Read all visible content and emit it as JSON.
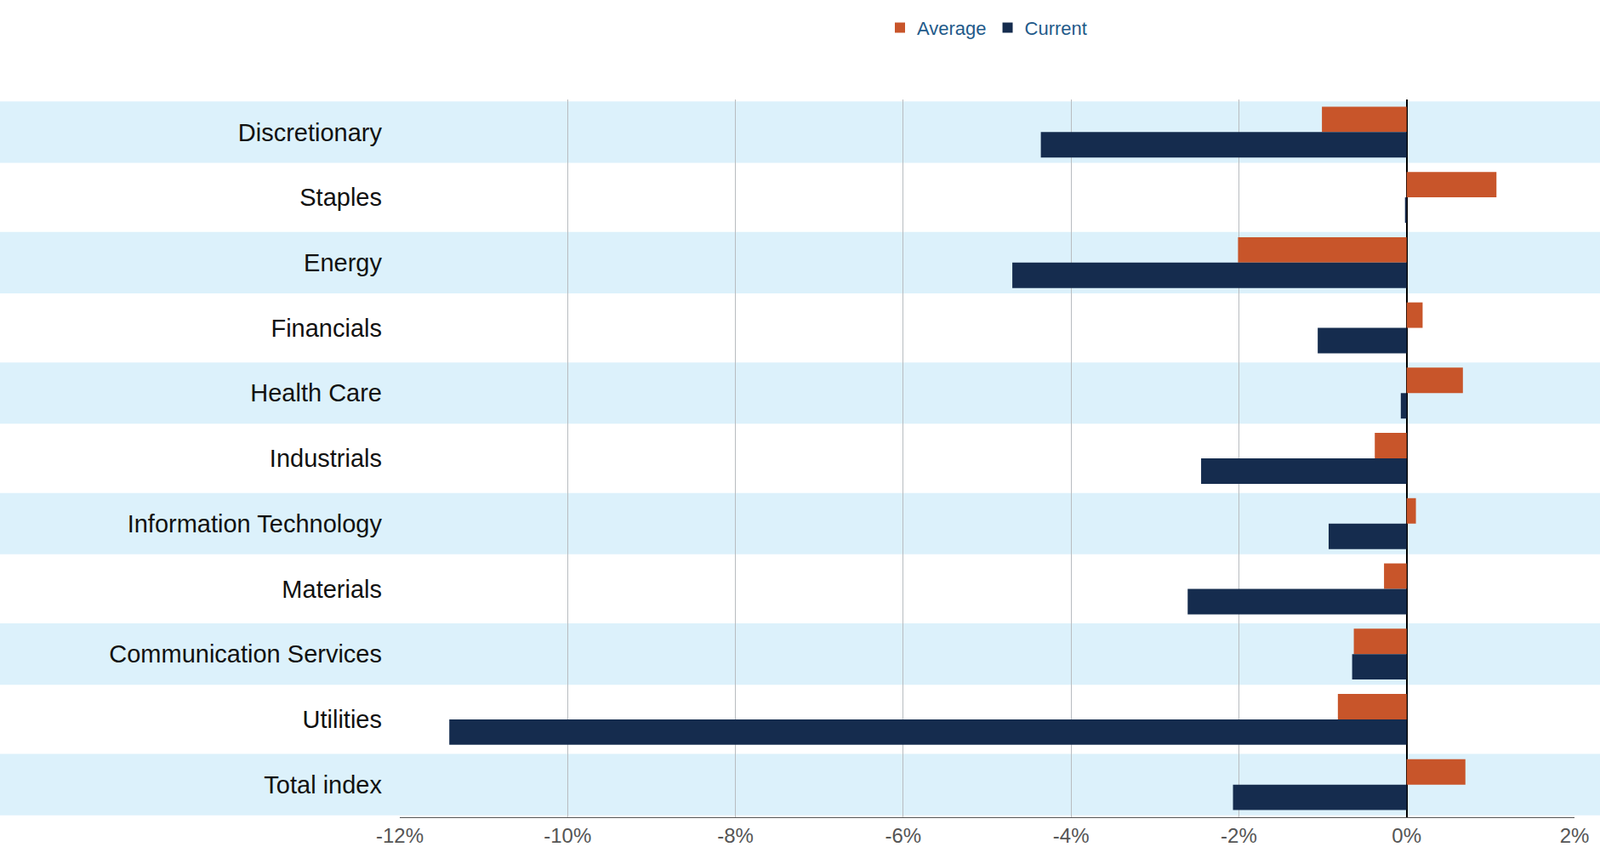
{
  "chart_data": {
    "type": "bar",
    "orientation": "horizontal",
    "categories": [
      "Discretionary",
      "Staples",
      "Energy",
      "Financials",
      "Health Care",
      "Industrials",
      "Information Technology",
      "Materials",
      "Communication Services",
      "Utilities",
      "Total index"
    ],
    "series": [
      {
        "name": "Average",
        "color": "#c8552a",
        "values": [
          -1.01,
          1.07,
          -2.01,
          0.19,
          0.67,
          -0.38,
          0.11,
          -0.27,
          -0.63,
          -0.82,
          0.7
        ]
      },
      {
        "name": "Current",
        "color": "#152c4e",
        "values": [
          -4.36,
          -0.02,
          -4.7,
          -1.06,
          -0.07,
          -2.45,
          -0.93,
          -2.61,
          -0.65,
          -11.41,
          -2.07
        ]
      }
    ],
    "xlim": [
      -12,
      2
    ],
    "xticks": [
      {
        "value": -12,
        "label": "-12%"
      },
      {
        "value": -10,
        "label": "-10%"
      },
      {
        "value": -8,
        "label": "-8%"
      },
      {
        "value": -6,
        "label": "-6%"
      },
      {
        "value": -4,
        "label": "-4%"
      },
      {
        "value": -2,
        "label": "-2%"
      },
      {
        "value": 0,
        "label": "0%"
      },
      {
        "value": 2,
        "label": "2%"
      }
    ],
    "grid": true,
    "legend": "top"
  }
}
